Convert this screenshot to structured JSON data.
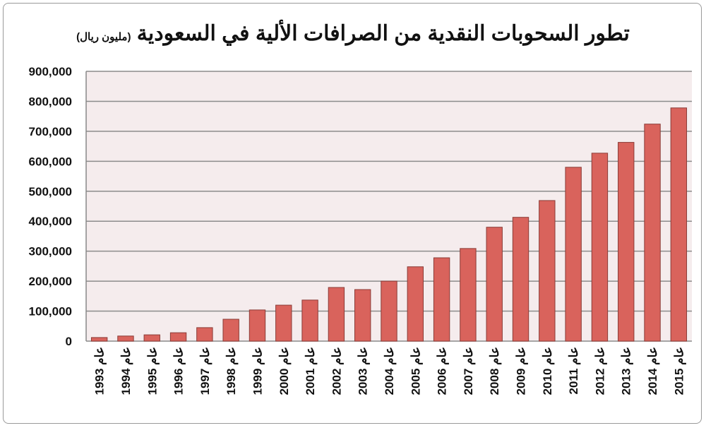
{
  "chart_data": {
    "type": "bar",
    "title": "تطور السحوبات النقدية من الصرافات الألية في السعودية",
    "subtitle": "(مليون ريال)",
    "xlabel": "",
    "ylabel": "",
    "category_prefix": "عام",
    "categories": [
      "1993",
      "1994",
      "1995",
      "1996",
      "1997",
      "1998",
      "1999",
      "2000",
      "2001",
      "2002",
      "2003",
      "2004",
      "2005",
      "2006",
      "2007",
      "2008",
      "2009",
      "2010",
      "2011",
      "2012",
      "2013",
      "2014",
      "2015"
    ],
    "values": [
      12000,
      17000,
      21000,
      28000,
      45000,
      73000,
      104000,
      120000,
      137000,
      179000,
      172000,
      200000,
      248000,
      278000,
      309000,
      380000,
      413000,
      469000,
      580000,
      627000,
      663000,
      724000,
      778000
    ],
    "ylim": [
      0,
      900000
    ],
    "yticks": [
      "0",
      "100,000",
      "200,000",
      "300,000",
      "400,000",
      "500,000",
      "600,000",
      "700,000",
      "800,000",
      "900,000"
    ],
    "grid": true,
    "legend": "none",
    "colors": {
      "bar": "#d9635c",
      "bar_edge": "#8a3b36",
      "plot_bg": "#f5eced",
      "grid": "#8c8c8c"
    }
  }
}
